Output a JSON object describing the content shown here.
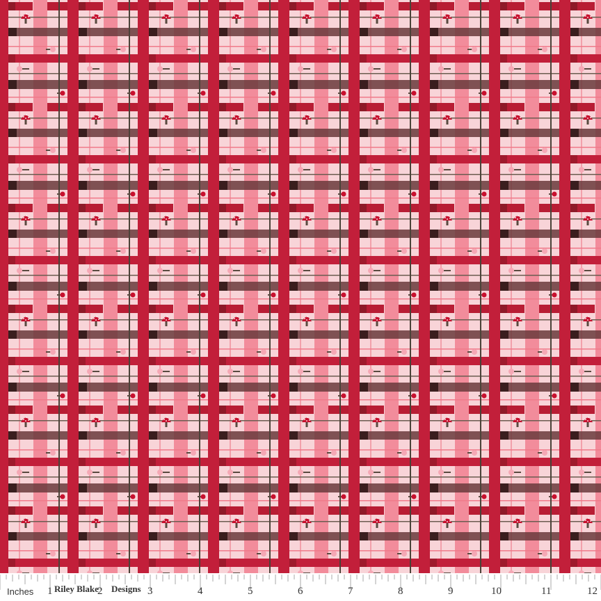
{
  "fabric": {
    "pattern": "plaid with mushrooms and flowers",
    "colors": {
      "background": "#f8d4d8",
      "red": "#c21f3a",
      "dark_red": "#9e1a2c",
      "pink": "#f28c9b",
      "dark_band": "#5a2a2e",
      "thin_line": "#4b4238",
      "mushroom": "#c8102e"
    },
    "motifs": [
      "mushroom-icon",
      "flower-icon",
      "small-red-flower-icon"
    ]
  },
  "ruler": {
    "unit_label": "Inches",
    "numbers": [
      "1",
      "2",
      "3",
      "4",
      "5",
      "6",
      "7",
      "8",
      "9",
      "10",
      "11",
      "12"
    ],
    "brand_1": "Riley Blake",
    "brand_2": "Designs"
  }
}
